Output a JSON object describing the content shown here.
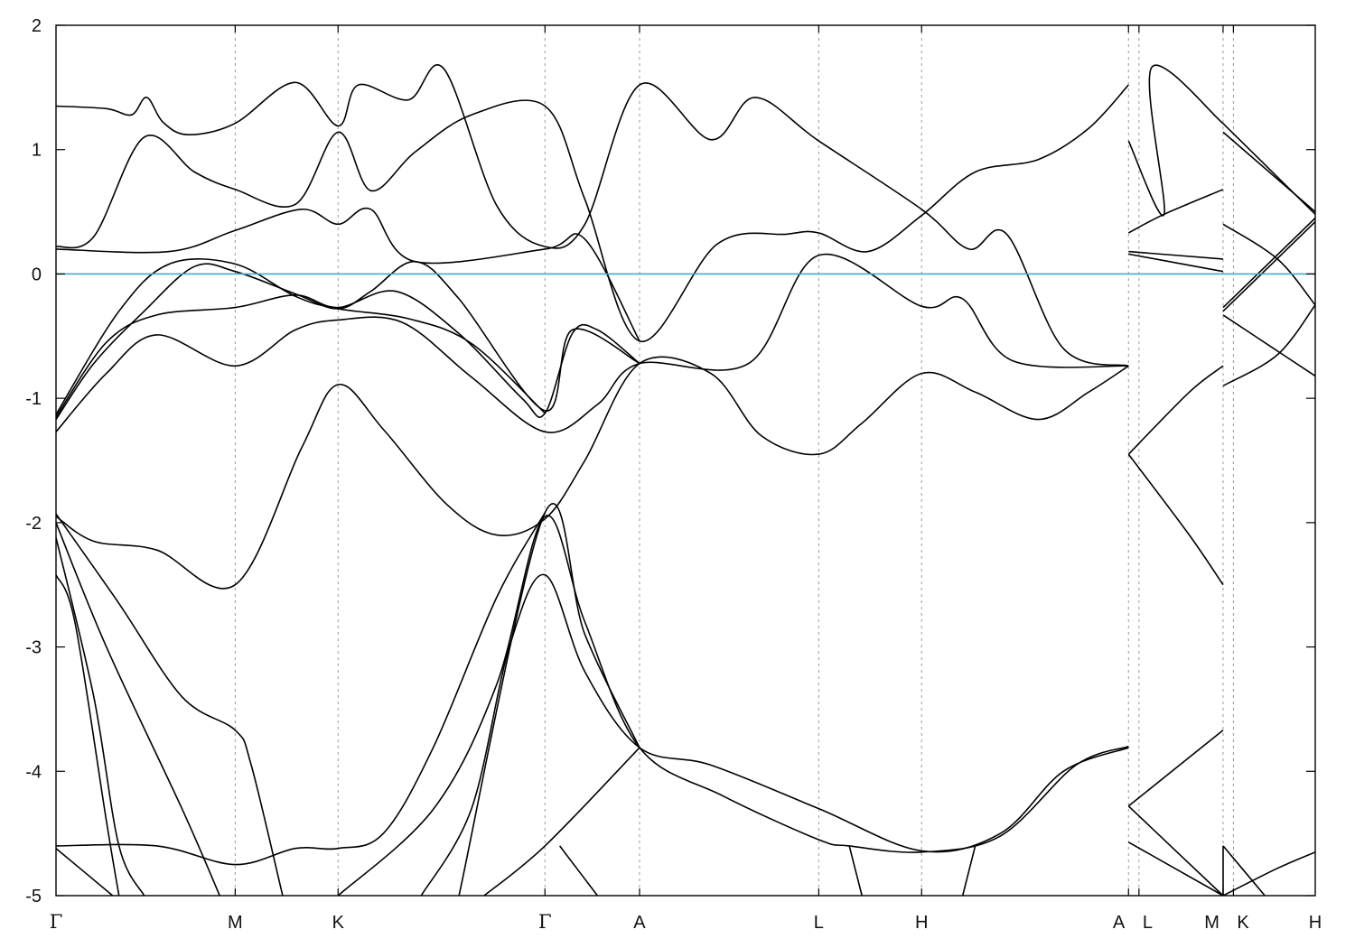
{
  "chart_data": {
    "type": "line",
    "title": "",
    "xlabel": "",
    "ylabel": "",
    "ylim": [
      -5,
      2
    ],
    "yticks": [
      2,
      1,
      0,
      -1,
      -2,
      -3,
      -4,
      -5
    ],
    "ytick_labels": [
      "2",
      "1",
      "0",
      "-1",
      "-2",
      "-3",
      "-4",
      "-5"
    ],
    "kpath": [
      {
        "label": "Γ",
        "x": 0.0
      },
      {
        "label": "M",
        "x": 1.423
      },
      {
        "label": "K",
        "x": 2.24
      },
      {
        "label": "Γ",
        "x": 3.883
      },
      {
        "label": "A",
        "x": 4.634
      },
      {
        "label": "L",
        "x": 6.057
      },
      {
        "label": "H",
        "x": 6.874
      },
      {
        "label": "A",
        "x": 8.517
      },
      {
        "label": "L",
        "x": 8.6
      },
      {
        "label": "M",
        "x": 9.268
      },
      {
        "label": "K",
        "x": 9.35
      },
      {
        "label": "H",
        "x": 10.0
      }
    ],
    "xlim": [
      0,
      10
    ],
    "fermi_level": 0,
    "fermi_color": "#4aa8c8",
    "line_color": "#000000",
    "series": [
      {
        "points": [
          [
            0,
            1.35
          ],
          [
            0.4,
            1.33
          ],
          [
            0.6,
            1.28
          ],
          [
            0.72,
            1.42
          ],
          [
            0.85,
            1.22
          ],
          [
            1.05,
            1.12
          ],
          [
            1.42,
            1.21
          ],
          [
            1.9,
            1.54
          ],
          [
            2.24,
            1.19
          ],
          [
            2.4,
            1.52
          ],
          [
            2.8,
            1.4
          ],
          [
            3.08,
            1.65
          ],
          [
            3.5,
            0.55
          ],
          [
            3.883,
            0.22
          ],
          [
            4.2,
            0.4
          ],
          [
            4.634,
            1.52
          ],
          [
            5.2,
            1.08
          ],
          [
            5.55,
            1.42
          ],
          [
            6.057,
            1.07
          ],
          [
            6.874,
            0.52
          ],
          [
            7.25,
            0.2
          ],
          [
            7.55,
            0.32
          ],
          [
            8.0,
            -0.6
          ],
          [
            8.517,
            -0.74
          ]
        ]
      },
      {
        "points": [
          [
            0,
            0.22
          ],
          [
            0.3,
            0.3
          ],
          [
            0.7,
            1.1
          ],
          [
            1.1,
            0.82
          ],
          [
            1.423,
            0.68
          ],
          [
            1.9,
            0.56
          ],
          [
            2.24,
            1.14
          ],
          [
            2.5,
            0.67
          ],
          [
            2.85,
            0.98
          ],
          [
            3.3,
            1.28
          ],
          [
            3.883,
            1.35
          ],
          [
            4.2,
            0.6
          ],
          [
            4.634,
            -0.54
          ],
          [
            5.25,
            0.24
          ],
          [
            5.8,
            0.32
          ],
          [
            6.057,
            0.33
          ],
          [
            6.45,
            0.18
          ],
          [
            6.874,
            0.47
          ],
          [
            7.3,
            0.82
          ],
          [
            7.8,
            0.92
          ],
          [
            8.2,
            1.17
          ],
          [
            8.517,
            1.52
          ]
        ]
      },
      {
        "points": [
          [
            0,
            0.2
          ],
          [
            0.9,
            0.18
          ],
          [
            1.423,
            0.35
          ],
          [
            1.95,
            0.52
          ],
          [
            2.24,
            0.4
          ],
          [
            2.5,
            0.52
          ],
          [
            2.85,
            0.1
          ],
          [
            3.883,
            0.2
          ],
          [
            4.2,
            0.28
          ],
          [
            4.634,
            -0.54
          ]
        ]
      },
      {
        "points": [
          [
            0,
            -1.27
          ],
          [
            0.4,
            -0.8
          ],
          [
            0.8,
            -0.49
          ],
          [
            1.423,
            -0.74
          ],
          [
            1.9,
            -0.45
          ],
          [
            2.24,
            -0.37
          ],
          [
            2.75,
            -0.39
          ],
          [
            3.3,
            -0.83
          ],
          [
            3.883,
            -1.27
          ],
          [
            4.3,
            -1.05
          ],
          [
            4.634,
            -0.72
          ],
          [
            5.5,
            -0.72
          ],
          [
            6.057,
            0.15
          ],
          [
            6.874,
            -0.26
          ],
          [
            7.2,
            -0.2
          ],
          [
            7.6,
            -0.7
          ],
          [
            8.517,
            -0.74
          ]
        ]
      },
      {
        "points": [
          [
            0,
            -1.15
          ],
          [
            0.4,
            -0.55
          ],
          [
            0.8,
            -0.33
          ],
          [
            1.423,
            -0.27
          ],
          [
            1.9,
            -0.17
          ],
          [
            2.24,
            -0.27
          ],
          [
            2.7,
            -0.14
          ],
          [
            3.2,
            -0.48
          ],
          [
            3.7,
            -1.0
          ],
          [
            3.883,
            -1.12
          ],
          [
            4.1,
            -0.48
          ],
          [
            4.3,
            -0.45
          ],
          [
            4.634,
            -0.72
          ]
        ]
      },
      {
        "points": [
          [
            0,
            -1.17
          ],
          [
            0.3,
            -0.72
          ],
          [
            0.7,
            -0.3
          ],
          [
            1.1,
            0.06
          ],
          [
            1.423,
            0.02
          ],
          [
            1.9,
            -0.16
          ],
          [
            2.24,
            -0.28
          ],
          [
            2.5,
            -0.14
          ],
          [
            2.85,
            0.1
          ],
          [
            3.2,
            -0.2
          ],
          [
            3.883,
            -1.1
          ],
          [
            4.1,
            -0.45
          ],
          [
            4.634,
            -0.72
          ]
        ]
      },
      {
        "points": [
          [
            0,
            -1.13
          ],
          [
            0.5,
            -0.3
          ],
          [
            0.9,
            0.08
          ],
          [
            1.423,
            0.08
          ],
          [
            1.9,
            -0.18
          ],
          [
            2.24,
            -0.28
          ],
          [
            2.8,
            -0.36
          ],
          [
            3.3,
            -0.56
          ],
          [
            3.883,
            -1.12
          ]
        ]
      },
      {
        "points": [
          [
            0,
            -1.95
          ],
          [
            0.3,
            -2.15
          ],
          [
            0.8,
            -2.22
          ],
          [
            1.423,
            -2.5
          ],
          [
            1.95,
            -1.4
          ],
          [
            2.24,
            -0.89
          ],
          [
            2.6,
            -1.25
          ],
          [
            3.1,
            -1.85
          ],
          [
            3.5,
            -2.1
          ],
          [
            3.883,
            -1.97
          ],
          [
            4.2,
            -1.5
          ],
          [
            4.634,
            -0.72
          ],
          [
            5.2,
            -0.8
          ],
          [
            5.6,
            -1.3
          ],
          [
            6.057,
            -1.45
          ],
          [
            6.4,
            -1.2
          ],
          [
            6.874,
            -0.8
          ],
          [
            7.3,
            -0.95
          ],
          [
            7.8,
            -1.17
          ],
          [
            8.2,
            -0.95
          ],
          [
            8.517,
            -0.74
          ]
        ]
      },
      {
        "points": [
          [
            0,
            -1.93
          ],
          [
            0.5,
            -2.65
          ],
          [
            1.0,
            -3.4
          ],
          [
            1.423,
            -3.67
          ],
          [
            1.55,
            -3.95
          ],
          [
            1.8,
            -5.0
          ]
        ]
      },
      {
        "points": [
          [
            0,
            -2.0
          ],
          [
            0.4,
            -3.0
          ],
          [
            1.0,
            -4.3
          ],
          [
            1.3,
            -5.0
          ]
        ]
      },
      {
        "points": [
          [
            0,
            -2.12
          ],
          [
            0.3,
            -3.4
          ],
          [
            0.5,
            -4.6
          ],
          [
            0.7,
            -5.0
          ]
        ]
      },
      {
        "points": [
          [
            0,
            -2.42
          ],
          [
            0.15,
            -2.8
          ],
          [
            0.4,
            -4.4
          ],
          [
            0.5,
            -5.0
          ]
        ]
      },
      {
        "points": [
          [
            2.9,
            -5.0
          ],
          [
            3.3,
            -4.3
          ],
          [
            3.6,
            -3.0
          ],
          [
            3.883,
            -2.42
          ],
          [
            4.2,
            -3.2
          ],
          [
            4.634,
            -3.81
          ],
          [
            5.2,
            -3.95
          ],
          [
            6.057,
            -4.3
          ],
          [
            6.874,
            -4.64
          ],
          [
            7.5,
            -4.5
          ],
          [
            8.0,
            -4.0
          ],
          [
            8.517,
            -3.81
          ]
        ]
      },
      {
        "points": [
          [
            2.24,
            -5.0
          ],
          [
            3.0,
            -4.3
          ],
          [
            3.5,
            -3.3
          ],
          [
            3.883,
            -1.95
          ],
          [
            4.2,
            -2.8
          ],
          [
            4.634,
            -3.81
          ],
          [
            5.3,
            -4.2
          ],
          [
            6.057,
            -4.55
          ],
          [
            6.3,
            -4.6
          ],
          [
            6.874,
            -4.65
          ],
          [
            7.5,
            -4.52
          ],
          [
            8.1,
            -3.95
          ],
          [
            8.517,
            -3.8
          ]
        ]
      },
      {
        "points": [
          [
            3.2,
            -5.0
          ],
          [
            3.883,
            -1.92
          ],
          [
            4.2,
            -2.9
          ],
          [
            4.634,
            -3.81
          ]
        ]
      },
      {
        "points": [
          [
            0,
            -4.6
          ],
          [
            0.8,
            -4.6
          ],
          [
            1.423,
            -4.75
          ],
          [
            1.9,
            -4.62
          ],
          [
            2.24,
            -4.62
          ],
          [
            2.6,
            -4.5
          ],
          [
            3.0,
            -3.8
          ],
          [
            3.5,
            -2.6
          ],
          [
            3.883,
            -1.92
          ]
        ]
      },
      {
        "points": [
          [
            3.4,
            -5.0
          ],
          [
            3.883,
            -4.6
          ],
          [
            4.634,
            -3.81
          ]
        ]
      },
      {
        "points": [
          [
            0,
            -4.62
          ],
          [
            0.45,
            -5.0
          ]
        ]
      },
      {
        "points": [
          [
            4.0,
            -4.6
          ],
          [
            4.3,
            -5.0
          ]
        ]
      },
      {
        "points": [
          [
            6.3,
            -4.6
          ],
          [
            6.4,
            -5.0
          ]
        ]
      },
      {
        "points": [
          [
            7.3,
            -4.6
          ],
          [
            7.2,
            -5.0
          ]
        ]
      },
      {
        "points": [
          [
            8.517,
            0.33
          ],
          [
            8.8,
            0.48
          ],
          [
            9.268,
            0.68
          ]
        ]
      },
      {
        "points": [
          [
            8.517,
            1.07
          ],
          [
            8.8,
            0.48
          ],
          [
            8.7,
            1.66
          ],
          [
            9.268,
            1.21
          ]
        ]
      },
      {
        "points": [
          [
            8.517,
            0.16
          ],
          [
            9.268,
            0.02
          ]
        ]
      },
      {
        "points": [
          [
            8.517,
            0.18
          ],
          [
            9.268,
            0.12
          ]
        ]
      },
      {
        "points": [
          [
            8.517,
            -1.45
          ],
          [
            9.0,
            -0.95
          ],
          [
            9.268,
            -0.74
          ]
        ]
      },
      {
        "points": [
          [
            8.517,
            -1.45
          ],
          [
            9.0,
            -2.1
          ],
          [
            9.268,
            -2.5
          ]
        ]
      },
      {
        "points": [
          [
            8.517,
            -4.28
          ],
          [
            9.268,
            -3.67
          ]
        ]
      },
      {
        "points": [
          [
            8.517,
            -4.28
          ],
          [
            9.268,
            -5.0
          ]
        ]
      },
      {
        "points": [
          [
            8.517,
            -4.57
          ],
          [
            9.268,
            -5.0
          ]
        ]
      },
      {
        "points": [
          [
            9.268,
            -4.6
          ],
          [
            9.268,
            -5.0
          ]
        ]
      },
      {
        "points": [
          [
            9.268,
            1.14
          ],
          [
            10.0,
            0.5
          ]
        ]
      },
      {
        "points": [
          [
            9.268,
            1.21
          ],
          [
            10.0,
            0.48
          ]
        ]
      },
      {
        "points": [
          [
            9.268,
            0.4
          ],
          [
            9.7,
            0.12
          ],
          [
            10.0,
            -0.25
          ]
        ]
      },
      {
        "points": [
          [
            9.268,
            -0.27
          ],
          [
            10.0,
            0.45
          ]
        ]
      },
      {
        "points": [
          [
            9.268,
            -0.3
          ],
          [
            10.0,
            0.42
          ]
        ]
      },
      {
        "points": [
          [
            9.268,
            -0.33
          ],
          [
            9.7,
            -0.62
          ],
          [
            10.0,
            -0.82
          ]
        ]
      },
      {
        "points": [
          [
            9.268,
            -0.9
          ],
          [
            9.7,
            -0.65
          ],
          [
            10.0,
            -0.25
          ]
        ]
      },
      {
        "points": [
          [
            9.268,
            -4.6
          ],
          [
            9.6,
            -5.0
          ]
        ]
      },
      {
        "points": [
          [
            9.268,
            -5.0
          ],
          [
            9.7,
            -4.78
          ],
          [
            10.0,
            -4.65
          ]
        ]
      }
    ]
  }
}
